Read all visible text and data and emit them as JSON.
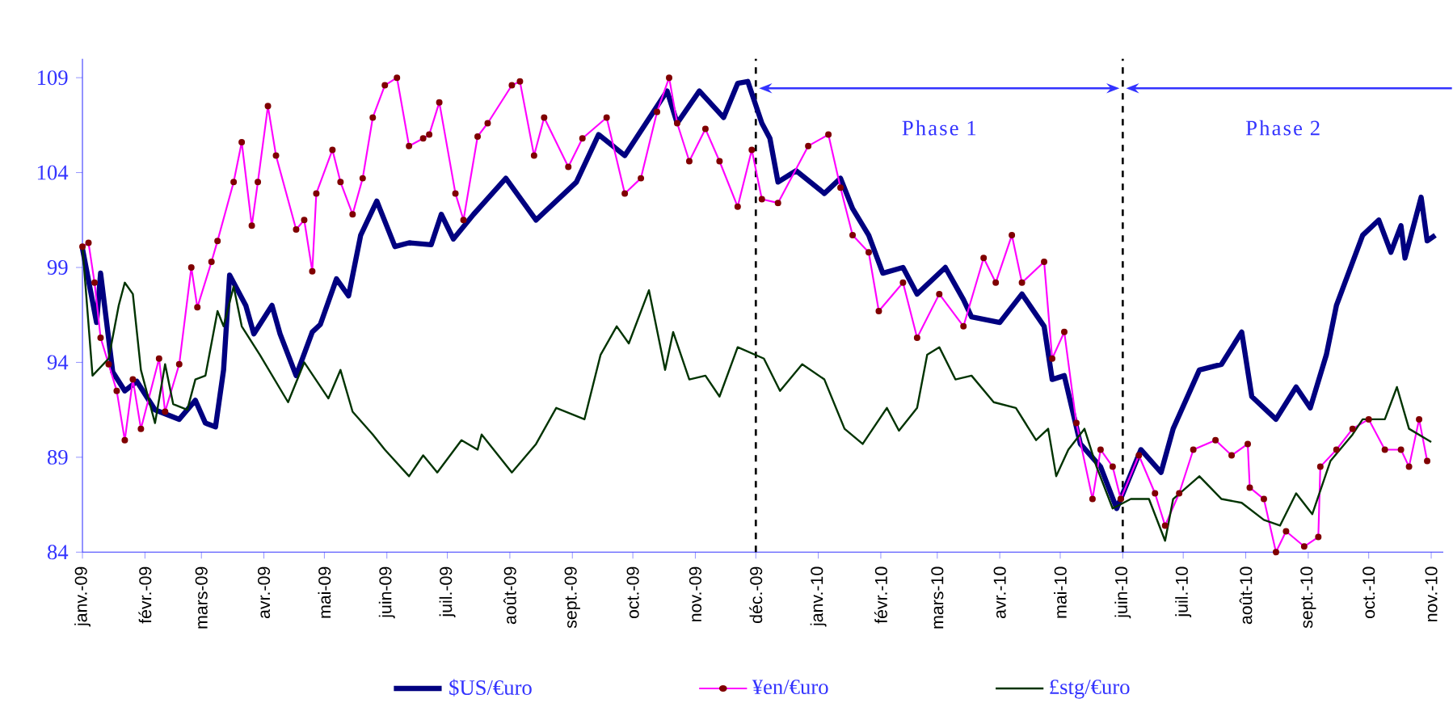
{
  "chart_data": {
    "type": "line",
    "xlim": [
      "2009-01-01",
      "2010-11-07"
    ],
    "ylim": [
      84,
      110
    ],
    "yticks": [
      84,
      89,
      94,
      99,
      104,
      109
    ],
    "xticks": [
      {
        "value": "2009-01-01",
        "label": "janv.-09"
      },
      {
        "value": "2009-02-01",
        "label": "févr.-09"
      },
      {
        "value": "2009-03-01",
        "label": "mars-09"
      },
      {
        "value": "2009-04-01",
        "label": "avr.-09"
      },
      {
        "value": "2009-05-01",
        "label": "mai-09"
      },
      {
        "value": "2009-06-01",
        "label": "juin-09"
      },
      {
        "value": "2009-07-01",
        "label": "juil.-09"
      },
      {
        "value": "2009-08-01",
        "label": "août-09"
      },
      {
        "value": "2009-09-01",
        "label": "sept.-09"
      },
      {
        "value": "2009-10-01",
        "label": "oct.-09"
      },
      {
        "value": "2009-11-01",
        "label": "nov.-09"
      },
      {
        "value": "2009-12-01",
        "label": "déc.-09"
      },
      {
        "value": "2010-01-01",
        "label": "janv.-10"
      },
      {
        "value": "2010-02-01",
        "label": "févr.-10"
      },
      {
        "value": "2010-03-01",
        "label": "mars-10"
      },
      {
        "value": "2010-04-01",
        "label": "avr.-10"
      },
      {
        "value": "2010-05-01",
        "label": "mai-10"
      },
      {
        "value": "2010-06-01",
        "label": "juin-10"
      },
      {
        "value": "2010-07-01",
        "label": "juil.-10"
      },
      {
        "value": "2010-08-01",
        "label": "août-10"
      },
      {
        "value": "2010-09-01",
        "label": "sept.-10"
      },
      {
        "value": "2010-10-01",
        "label": "oct.-10"
      },
      {
        "value": "2010-11-01",
        "label": "nov.-10"
      }
    ],
    "legend": "bottom",
    "grid": false,
    "series": [
      {
        "name": "$US/€uro",
        "color": "#000080",
        "marker": "none",
        "x": [
          "2009-01-01",
          "2009-01-08",
          "2009-01-10",
          "2009-01-16",
          "2009-01-22",
          "2009-01-28",
          "2009-02-06",
          "2009-02-18",
          "2009-02-26",
          "2009-03-03",
          "2009-03-08",
          "2009-03-12",
          "2009-03-15",
          "2009-03-23",
          "2009-03-27",
          "2009-04-05",
          "2009-04-09",
          "2009-04-17",
          "2009-04-25",
          "2009-04-29",
          "2009-05-07",
          "2009-05-13",
          "2009-05-19",
          "2009-05-27",
          "2009-06-05",
          "2009-06-12",
          "2009-06-23",
          "2009-06-28",
          "2009-07-04",
          "2009-07-14",
          "2009-07-30",
          "2009-08-14",
          "2009-09-03",
          "2009-09-14",
          "2009-09-27",
          "2009-10-18",
          "2009-10-23",
          "2009-11-03",
          "2009-11-15",
          "2009-11-22",
          "2009-11-27",
          "2009-12-04",
          "2009-12-08",
          "2009-12-12",
          "2009-12-21",
          "2010-01-04",
          "2010-01-12",
          "2010-01-18",
          "2010-01-26",
          "2010-02-02",
          "2010-02-12",
          "2010-02-19",
          "2010-03-05",
          "2010-03-14",
          "2010-03-18",
          "2010-04-01",
          "2010-04-12",
          "2010-04-23",
          "2010-04-27",
          "2010-05-03",
          "2010-05-11",
          "2010-05-21",
          "2010-05-29",
          "2010-06-10",
          "2010-06-20",
          "2010-06-26",
          "2010-07-09",
          "2010-07-20",
          "2010-07-30",
          "2010-08-04",
          "2010-08-16",
          "2010-08-26",
          "2010-09-02",
          "2010-09-10",
          "2010-09-15",
          "2010-09-28",
          "2010-10-06",
          "2010-10-12",
          "2010-10-17",
          "2010-10-19",
          "2010-10-27",
          "2010-10-30",
          "2010-11-03"
        ],
        "values": [
          100,
          96.1,
          98.7,
          93.5,
          92.5,
          93,
          91.5,
          91,
          92,
          90.8,
          90.6,
          93.6,
          98.6,
          97,
          95.5,
          97,
          95.5,
          93.3,
          95.6,
          96,
          98.4,
          97.5,
          100.7,
          102.5,
          100.1,
          100.3,
          100.2,
          101.8,
          100.5,
          101.8,
          103.7,
          101.5,
          103.5,
          106,
          104.9,
          108.3,
          106.6,
          108.3,
          106.9,
          108.7,
          108.8,
          106.6,
          105.8,
          103.5,
          104.1,
          102.9,
          103.7,
          102.1,
          100.7,
          98.7,
          99,
          97.6,
          99,
          97.3,
          96.4,
          96.1,
          97.6,
          95.9,
          93.1,
          93.3,
          89.7,
          88.5,
          86.3,
          89.4,
          88.2,
          90.5,
          93.6,
          93.9,
          95.6,
          92.2,
          91,
          92.7,
          91.6,
          94.4,
          97,
          100.7,
          101.5,
          99.8,
          101.2,
          99.5,
          102.7,
          100.4,
          100.7
        ]
      },
      {
        "name": "¥en/€uro",
        "color": "#ff00ff",
        "marker": "circle",
        "x": [
          "2009-01-01",
          "2009-01-04",
          "2009-01-07",
          "2009-01-10",
          "2009-01-14",
          "2009-01-18",
          "2009-01-22",
          "2009-01-26",
          "2009-01-30",
          "2009-02-08",
          "2009-02-11",
          "2009-02-18",
          "2009-02-24",
          "2009-02-27",
          "2009-03-06",
          "2009-03-09",
          "2009-03-17",
          "2009-03-21",
          "2009-03-26",
          "2009-03-29",
          "2009-04-03",
          "2009-04-07",
          "2009-04-17",
          "2009-04-21",
          "2009-04-25",
          "2009-04-27",
          "2009-05-05",
          "2009-05-09",
          "2009-05-15",
          "2009-05-20",
          "2009-05-25",
          "2009-05-31",
          "2009-06-06",
          "2009-06-12",
          "2009-06-19",
          "2009-06-22",
          "2009-06-27",
          "2009-07-05",
          "2009-07-09",
          "2009-07-16",
          "2009-07-21",
          "2009-08-02",
          "2009-08-06",
          "2009-08-13",
          "2009-08-18",
          "2009-08-30",
          "2009-09-06",
          "2009-09-18",
          "2009-09-27",
          "2009-10-05",
          "2009-10-13",
          "2009-10-19",
          "2009-10-23",
          "2009-10-29",
          "2009-11-06",
          "2009-11-13",
          "2009-11-22",
          "2009-11-29",
          "2009-12-04",
          "2009-12-12",
          "2009-12-27",
          "2010-01-06",
          "2010-01-12",
          "2010-01-18",
          "2010-01-26",
          "2010-01-31",
          "2010-02-12",
          "2010-02-19",
          "2010-03-02",
          "2010-03-14",
          "2010-03-24",
          "2010-03-30",
          "2010-04-07",
          "2010-04-12",
          "2010-04-23",
          "2010-04-27",
          "2010-05-03",
          "2010-05-09",
          "2010-05-17",
          "2010-05-21",
          "2010-05-27",
          "2010-05-31",
          "2010-06-09",
          "2010-06-17",
          "2010-06-22",
          "2010-06-29",
          "2010-07-06",
          "2010-07-17",
          "2010-07-25",
          "2010-08-02",
          "2010-08-03",
          "2010-08-10",
          "2010-08-16",
          "2010-08-21",
          "2010-08-30",
          "2010-09-06",
          "2010-09-07",
          "2010-09-15",
          "2010-09-23",
          "2010-10-01",
          "2010-10-09",
          "2010-10-17",
          "2010-10-21",
          "2010-10-26",
          "2010-10-30"
        ],
        "values": [
          100.1,
          100.3,
          98.2,
          95.3,
          93.9,
          92.5,
          89.9,
          93.1,
          90.5,
          94.2,
          91.4,
          93.9,
          99,
          96.9,
          99.3,
          100.4,
          103.5,
          105.6,
          101.2,
          103.5,
          107.5,
          104.9,
          101,
          101.5,
          98.8,
          102.9,
          105.2,
          103.5,
          101.8,
          103.7,
          106.9,
          108.6,
          109,
          105.4,
          105.8,
          106,
          107.7,
          102.9,
          101.5,
          105.9,
          106.6,
          108.6,
          108.8,
          104.9,
          106.9,
          104.3,
          105.8,
          106.9,
          102.9,
          103.7,
          107.2,
          109,
          106.6,
          104.6,
          106.3,
          104.6,
          102.2,
          105.2,
          102.6,
          102.4,
          105.4,
          106,
          103.2,
          100.7,
          99.8,
          96.7,
          98.2,
          95.3,
          97.6,
          95.9,
          99.5,
          98.2,
          100.7,
          98.2,
          99.3,
          94.2,
          95.6,
          90.8,
          86.8,
          89.4,
          88.5,
          86.8,
          89.1,
          87.1,
          85.4,
          87.1,
          89.4,
          89.9,
          89.1,
          89.7,
          87.4,
          86.8,
          84,
          85.1,
          84.3,
          84.8,
          88.5,
          89.4,
          90.5,
          91,
          89.4,
          89.4,
          88.5,
          91,
          88.8
        ]
      },
      {
        "name": "£stg/€uro",
        "color": "#003300",
        "marker": "none",
        "x": [
          "2009-01-01",
          "2009-01-06",
          "2009-01-14",
          "2009-01-19",
          "2009-01-22",
          "2009-01-26",
          "2009-01-30",
          "2009-02-06",
          "2009-02-11",
          "2009-02-15",
          "2009-02-22",
          "2009-02-26",
          "2009-03-03",
          "2009-03-09",
          "2009-03-12",
          "2009-03-17",
          "2009-03-21",
          "2009-03-30",
          "2009-04-13",
          "2009-04-21",
          "2009-05-03",
          "2009-05-09",
          "2009-05-15",
          "2009-05-25",
          "2009-05-31",
          "2009-06-12",
          "2009-06-19",
          "2009-06-26",
          "2009-07-08",
          "2009-07-16",
          "2009-07-18",
          "2009-08-02",
          "2009-08-14",
          "2009-08-24",
          "2009-09-07",
          "2009-09-15",
          "2009-09-23",
          "2009-09-29",
          "2009-10-09",
          "2009-10-17",
          "2009-10-21",
          "2009-10-29",
          "2009-11-06",
          "2009-11-13",
          "2009-11-22",
          "2009-12-05",
          "2009-12-13",
          "2009-12-24",
          "2010-01-04",
          "2010-01-14",
          "2010-01-23",
          "2010-02-04",
          "2010-02-10",
          "2010-02-19",
          "2010-02-24",
          "2010-03-02",
          "2010-03-10",
          "2010-03-18",
          "2010-03-29",
          "2010-04-09",
          "2010-04-19",
          "2010-04-25",
          "2010-04-29",
          "2010-05-05",
          "2010-05-13",
          "2010-05-19",
          "2010-05-27",
          "2010-06-05",
          "2010-06-14",
          "2010-06-22",
          "2010-06-26",
          "2010-07-09",
          "2010-07-20",
          "2010-07-30",
          "2010-08-10",
          "2010-08-18",
          "2010-08-26",
          "2010-09-03",
          "2010-09-12",
          "2010-09-23",
          "2010-09-28",
          "2010-10-09",
          "2010-10-15",
          "2010-10-21",
          "2010-11-01"
        ],
        "values": [
          100.1,
          93.3,
          94.2,
          97,
          98.2,
          97.6,
          93.6,
          90.8,
          93.9,
          91.8,
          91.5,
          93.1,
          93.3,
          96.7,
          95.9,
          98,
          95.9,
          94.4,
          91.9,
          94,
          92.1,
          93.6,
          91.4,
          90.2,
          89.4,
          88,
          89.1,
          88.2,
          89.9,
          89.4,
          90.2,
          88.2,
          89.7,
          91.6,
          91,
          94.4,
          95.9,
          95,
          97.8,
          93.6,
          95.6,
          93.1,
          93.3,
          92.2,
          94.8,
          94.2,
          92.5,
          93.9,
          93.1,
          90.5,
          89.7,
          91.6,
          90.4,
          91.6,
          94.4,
          94.8,
          93.1,
          93.3,
          91.9,
          91.6,
          89.9,
          90.5,
          88,
          89.4,
          90.5,
          88.5,
          86.3,
          86.8,
          86.8,
          84.6,
          86.8,
          88,
          86.8,
          86.6,
          85.7,
          85.4,
          87.1,
          86,
          88.8,
          90.2,
          91,
          91,
          92.7,
          90.5,
          89.8
        ]
      }
    ],
    "ref_lines": [
      {
        "axis": "x",
        "value": "2009-12-01",
        "color": "#000000",
        "line_style": "dashed"
      },
      {
        "axis": "x",
        "value": "2010-06-01",
        "color": "#000000",
        "line_style": "dashed"
      }
    ],
    "annotations": [
      "Phase 1",
      "Phase 2"
    ]
  }
}
